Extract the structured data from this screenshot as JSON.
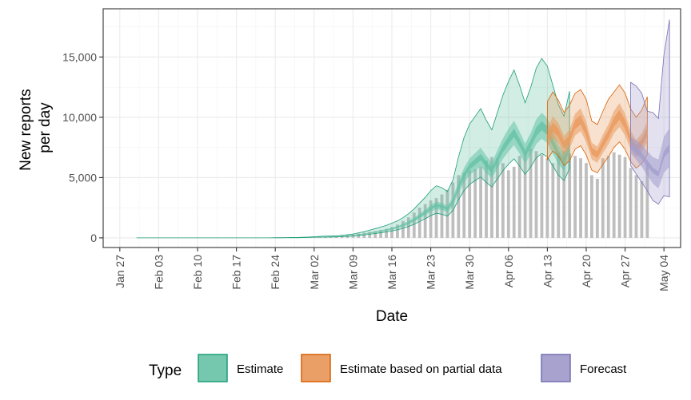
{
  "chart_data": {
    "type": "area",
    "xlabel": "Date",
    "ylabel_lines": [
      "New reports",
      "per day"
    ],
    "x_ticks": [
      "Jan 27",
      "Feb 03",
      "Feb 10",
      "Feb 17",
      "Feb 24",
      "Mar 02",
      "Mar 09",
      "Mar 16",
      "Mar 23",
      "Mar 30",
      "Apr 06",
      "Apr 13",
      "Apr 20",
      "Apr 27",
      "May 04"
    ],
    "y_ticks": [
      "0",
      "5,000",
      "10,000",
      "15,000"
    ],
    "y_tick_values": [
      0,
      5000,
      10000,
      15000
    ],
    "xlim": [
      "2020-01-24",
      "2020-05-07"
    ],
    "ylim": [
      -800,
      19000
    ],
    "forecast_start": "2020-04-28",
    "grid": true,
    "legend": {
      "title": "Type",
      "position": "bottom",
      "items": [
        {
          "label": "Estimate",
          "fill": "#66c2a5",
          "stroke": "#1b9e77"
        },
        {
          "label": "Estimate based on partial data",
          "fill": "#e99a5e",
          "stroke": "#d95f02"
        },
        {
          "label": "Forecast",
          "fill": "#a39dcc",
          "stroke": "#7570b3"
        }
      ]
    },
    "bars": {
      "start": "2020-03-03",
      "values": [
        50,
        80,
        100,
        150,
        200,
        250,
        300,
        360,
        420,
        500,
        560,
        650,
        750,
        900,
        1100,
        1400,
        1700,
        2100,
        2500,
        2800,
        3100,
        3300,
        3600,
        4000,
        4600,
        5200,
        5400,
        5600,
        5700,
        5900,
        6400,
        6700,
        6600,
        6200,
        5600,
        5900,
        6800,
        7100,
        7400,
        7200,
        6900,
        6600,
        6200,
        7100,
        7200,
        7000,
        6800,
        6600,
        6200,
        5200,
        4900,
        6600,
        6800,
        7100,
        6900,
        6700,
        5800,
        5200,
        4700,
        6100
      ]
    },
    "series": [
      {
        "name": "Estimate",
        "start": "2020-01-30",
        "median": [
          5,
          5,
          5,
          5,
          5,
          5,
          5,
          5,
          5,
          5,
          5,
          5,
          5,
          5,
          5,
          5,
          5,
          5,
          5,
          5,
          5,
          5,
          5,
          5,
          5,
          10,
          10,
          15,
          20,
          20,
          30,
          40,
          60,
          80,
          90,
          100,
          110,
          130,
          160,
          200,
          260,
          320,
          400,
          480,
          560,
          650,
          760,
          880,
          1050,
          1250,
          1500,
          1800,
          2100,
          2450,
          2700,
          2600,
          2400,
          3000,
          4200,
          5200,
          5900,
          6300,
          6700,
          6100,
          5600,
          6500,
          7400,
          8100,
          8700,
          7900,
          7000,
          7800,
          8800,
          9300,
          8900,
          7900,
          6900,
          6300,
          7600
        ],
        "lo50": [
          5,
          5,
          5,
          5,
          5,
          5,
          5,
          5,
          5,
          5,
          5,
          5,
          5,
          5,
          5,
          5,
          5,
          5,
          5,
          5,
          5,
          5,
          5,
          5,
          5,
          8,
          8,
          12,
          16,
          16,
          25,
          34,
          52,
          70,
          78,
          88,
          96,
          114,
          140,
          176,
          230,
          283,
          354,
          424,
          495,
          575,
          672,
          778,
          928,
          1105,
          1326,
          1591,
          1856,
          2166,
          2387,
          2298,
          2122,
          2652,
          3713,
          4597,
          5216,
          5569,
          5923,
          5392,
          4950,
          5746,
          6542,
          7160,
          7691,
          6984,
          6188,
          6895,
          7779,
          8221,
          7868,
          6984,
          6100,
          5569,
          6718
        ],
        "hi50": [
          5,
          5,
          5,
          5,
          5,
          5,
          5,
          5,
          5,
          5,
          5,
          5,
          5,
          5,
          5,
          5,
          5,
          5,
          5,
          5,
          5,
          5,
          5,
          5,
          5,
          12,
          12,
          18,
          24,
          24,
          35,
          46,
          68,
          90,
          102,
          112,
          124,
          146,
          180,
          224,
          290,
          357,
          446,
          536,
          625,
          725,
          848,
          982,
          1172,
          1395,
          1674,
          2009,
          2344,
          2734,
          3013,
          2902,
          2678,
          3348,
          4687,
          5803,
          6584,
          7031,
          7477,
          6808,
          6250,
          7254,
          8258,
          9040,
          9709,
          8816,
          7812,
          8705,
          9821,
          10379,
          9932,
          8816,
          7700,
          7031,
          8482
        ],
        "lo90": [
          5,
          5,
          5,
          5,
          5,
          5,
          5,
          5,
          5,
          5,
          5,
          5,
          5,
          5,
          5,
          5,
          5,
          5,
          5,
          5,
          5,
          5,
          5,
          5,
          5,
          6,
          6,
          10,
          14,
          14,
          22,
          29,
          44,
          60,
          66,
          75,
          82,
          97,
          120,
          150,
          196,
          241,
          301,
          361,
          422,
          490,
          573,
          663,
          791,
          942,
          1130,
          1356,
          1582,
          1846,
          2034,
          1958,
          1808,
          2260,
          3164,
          3918,
          4445,
          4746,
          5047,
          4595,
          4219,
          4897,
          5575,
          6102,
          6554,
          5951,
          5273,
          5876,
          6629,
          7006,
          6705,
          5951,
          5198,
          4746,
          5725
        ],
        "hi90": [
          5,
          5,
          5,
          5,
          5,
          5,
          5,
          5,
          5,
          5,
          5,
          5,
          5,
          5,
          5,
          5,
          5,
          5,
          5,
          5,
          5,
          5,
          5,
          5,
          5,
          16,
          16,
          24,
          32,
          32,
          48,
          64,
          96,
          128,
          144,
          160,
          176,
          208,
          256,
          320,
          416,
          512,
          640,
          768,
          896,
          1040,
          1216,
          1408,
          1680,
          2000,
          2400,
          2880,
          3360,
          3920,
          4320,
          4160,
          3840,
          4800,
          6720,
          8320,
          9440,
          10080,
          10720,
          9760,
          8960,
          10400,
          11840,
          12960,
          13920,
          12640,
          11200,
          12480,
          14080,
          14880,
          14240,
          12640,
          11040,
          10080,
          12160
        ]
      },
      {
        "name": "Estimate based on partial data",
        "start": "2020-04-13",
        "median": [
          8300,
          9200,
          8700,
          7700,
          8200,
          9400,
          9800,
          8800,
          7200,
          6900,
          7800,
          8600,
          9600,
          10200,
          9400,
          8100,
          7400,
          7900,
          8800
        ],
        "lo50": [
          7500,
          8300,
          7850,
          6950,
          7400,
          8480,
          8850,
          7950,
          6500,
          6230,
          7040,
          7760,
          8670,
          9210,
          8490,
          7320,
          6680,
          7130,
          7950
        ],
        "hi50": [
          9100,
          10080,
          9530,
          8440,
          8980,
          10300,
          10740,
          9640,
          7890,
          7560,
          8550,
          9420,
          10520,
          11180,
          10300,
          8880,
          8110,
          8660,
          9640
        ],
        "lo90": [
          6500,
          7200,
          6800,
          6000,
          6400,
          7350,
          7650,
          6880,
          5620,
          5390,
          6090,
          6720,
          7500,
          7960,
          7340,
          6330,
          5780,
          6170,
          6880
        ],
        "hi90": [
          11300,
          12100,
          11400,
          10400,
          11000,
          12000,
          12300,
          11500,
          9700,
          9400,
          10500,
          11500,
          12100,
          12700,
          12000,
          10700,
          10000,
          10600,
          11700
        ]
      },
      {
        "name": "Forecast",
        "start": "2020-04-28",
        "median": [
          7700,
          7300,
          6800,
          6200,
          5600,
          5300,
          6900,
          7500
        ],
        "lo50": [
          7000,
          6500,
          5900,
          5200,
          4500,
          4100,
          5400,
          5900
        ],
        "hi50": [
          8400,
          8100,
          7700,
          7200,
          6700,
          6500,
          8400,
          9100
        ],
        "lo90": [
          6000,
          5300,
          4600,
          3900,
          3100,
          2800,
          3500,
          3400
        ],
        "hi90": [
          12900,
          12600,
          12000,
          10500,
          10400,
          9900,
          15200,
          18100
        ]
      }
    ]
  }
}
